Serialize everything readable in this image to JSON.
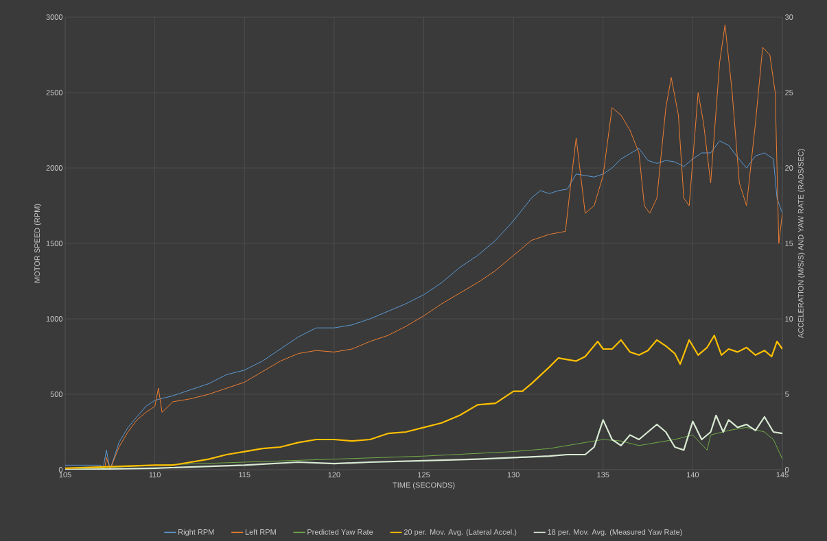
{
  "chart_data": {
    "type": "line",
    "xlabel": "TIME (SECONDS)",
    "ylabel": "MOTOR SPEED (RPM)",
    "y2label": "ACCELERATION (M/S/S) AND YAW RATE (RADS/SEC)",
    "xlim": [
      105,
      145
    ],
    "xticks": [
      105,
      110,
      115,
      120,
      125,
      130,
      135,
      140,
      145
    ],
    "ylim": [
      0,
      3000
    ],
    "yticks": [
      0,
      500,
      1000,
      1500,
      2000,
      2500,
      3000
    ],
    "y2lim": [
      0,
      30
    ],
    "y2ticks": [
      0,
      5,
      10,
      15,
      20,
      25,
      30
    ],
    "grid": true,
    "legend": "bottom",
    "series": [
      {
        "name": "Right RPM",
        "color": "#5b9bd5",
        "x": [
          105,
          107,
          107.1,
          107.3,
          107.5,
          108,
          108.5,
          109,
          109.5,
          110,
          111,
          112,
          113,
          114,
          115,
          116,
          117,
          118,
          119,
          120,
          121,
          122,
          123,
          124,
          125,
          126,
          127,
          128,
          129,
          130,
          131,
          131.5,
          132,
          132.5,
          133,
          133.5,
          134,
          134.5,
          135,
          135.5,
          136,
          137,
          137.5,
          138,
          138.5,
          139,
          139.5,
          140,
          140.5,
          141,
          141.5,
          142,
          142.5,
          143,
          143.5,
          144,
          144.5,
          144.7,
          145
        ],
        "values": [
          30,
          30,
          0,
          130,
          0,
          180,
          280,
          350,
          420,
          460,
          490,
          530,
          570,
          630,
          660,
          720,
          800,
          880,
          940,
          940,
          960,
          1000,
          1050,
          1100,
          1160,
          1240,
          1340,
          1420,
          1520,
          1650,
          1800,
          1850,
          1830,
          1850,
          1860,
          1960,
          1950,
          1940,
          1960,
          2000,
          2060,
          2130,
          2050,
          2030,
          2050,
          2040,
          2010,
          2060,
          2100,
          2100,
          2180,
          2150,
          2070,
          2000,
          2080,
          2100,
          2060,
          1800,
          1700
        ]
      },
      {
        "name": "Left RPM",
        "color": "#ed7d31",
        "x": [
          105,
          107,
          107.2,
          107.3,
          107.5,
          108,
          108.5,
          109,
          109.5,
          110,
          110.2,
          110.4,
          111,
          112,
          113,
          114,
          115,
          116,
          117,
          118,
          119,
          120,
          121,
          122,
          123,
          124,
          125,
          126,
          127,
          128,
          129,
          130,
          131,
          132,
          132.9,
          133.2,
          133.5,
          133.8,
          134,
          134.5,
          135,
          135.5,
          136,
          136.5,
          137,
          137.3,
          137.6,
          138,
          138.5,
          138.8,
          139.2,
          139.5,
          139.8,
          140.3,
          140.6,
          141,
          141.5,
          141.8,
          142.2,
          142.6,
          143,
          143.5,
          143.9,
          144.3,
          144.6,
          144.8,
          145
        ],
        "values": [
          10,
          10,
          0,
          80,
          0,
          150,
          250,
          330,
          380,
          420,
          540,
          380,
          450,
          470,
          500,
          540,
          580,
          650,
          720,
          770,
          790,
          780,
          800,
          850,
          890,
          950,
          1020,
          1100,
          1170,
          1240,
          1320,
          1420,
          1520,
          1560,
          1580,
          1900,
          2200,
          1900,
          1700,
          1750,
          1950,
          2400,
          2350,
          2250,
          2100,
          1750,
          1700,
          1800,
          2400,
          2600,
          2350,
          1800,
          1750,
          2500,
          2300,
          1900,
          2700,
          2950,
          2500,
          1900,
          1750,
          2300,
          2800,
          2750,
          2500,
          1500,
          1700
        ]
      },
      {
        "name": "Predicted Yaw Rate",
        "color": "#70ad47",
        "axis": "y2",
        "x": [
          105,
          110,
          115,
          120,
          125,
          130,
          132,
          133,
          134,
          135,
          136,
          137,
          138,
          139,
          140,
          140.8,
          141,
          142,
          143,
          144,
          144.5,
          145
        ],
        "values": [
          0,
          0.3,
          0.5,
          0.7,
          0.9,
          1.2,
          1.4,
          1.6,
          1.8,
          2.0,
          1.9,
          1.6,
          1.8,
          2.0,
          2.3,
          1.3,
          2.3,
          2.6,
          2.8,
          2.5,
          2.0,
          0.7
        ]
      },
      {
        "name": "20 per. Mov. Avg. (Lateral Accel.)",
        "color": "#ffc000",
        "axis": "y2",
        "x": [
          105,
          110,
          111,
          112,
          113,
          114,
          115,
          116,
          117,
          118,
          119,
          120,
          121,
          122,
          123,
          124,
          125,
          126,
          127,
          128,
          129,
          130,
          130.5,
          131,
          132,
          132.5,
          133,
          133.5,
          134,
          134.7,
          135,
          135.5,
          136,
          136.5,
          137,
          137.5,
          138,
          138.5,
          139,
          139.3,
          139.8,
          140.3,
          140.8,
          141.2,
          141.6,
          142,
          142.5,
          143,
          143.5,
          144,
          144.4,
          144.7,
          145
        ],
        "values": [
          0.1,
          0.3,
          0.3,
          0.5,
          0.7,
          1.0,
          1.2,
          1.4,
          1.5,
          1.8,
          2.0,
          2.0,
          1.9,
          2.0,
          2.4,
          2.5,
          2.8,
          3.1,
          3.6,
          4.3,
          4.4,
          5.2,
          5.2,
          5.7,
          6.8,
          7.4,
          7.3,
          7.2,
          7.5,
          8.5,
          8.0,
          8.0,
          8.6,
          7.8,
          7.6,
          7.9,
          8.6,
          8.2,
          7.7,
          7.0,
          8.6,
          7.6,
          8.1,
          8.9,
          7.6,
          8.0,
          7.8,
          8.1,
          7.6,
          7.9,
          7.5,
          8.5,
          8.0
        ]
      },
      {
        "name": "18 per. Mov. Avg. (Measured Yaw Rate)",
        "color": "#d9ead3",
        "axis": "y2",
        "x": [
          105,
          110,
          115,
          118,
          120,
          122,
          125,
          128,
          130,
          132,
          133,
          134,
          134.5,
          135,
          135.5,
          136,
          136.5,
          137,
          138,
          138.5,
          139,
          139.5,
          140,
          140.5,
          141,
          141.3,
          141.7,
          142,
          142.5,
          143,
          143.5,
          144,
          144.5,
          145
        ],
        "values": [
          0,
          0.1,
          0.3,
          0.5,
          0.4,
          0.5,
          0.6,
          0.7,
          0.8,
          0.9,
          1.0,
          1.0,
          1.5,
          3.3,
          2.0,
          1.6,
          2.3,
          2.0,
          3.0,
          2.5,
          1.5,
          1.3,
          3.2,
          2.0,
          2.5,
          3.6,
          2.5,
          3.3,
          2.8,
          3.0,
          2.6,
          3.5,
          2.5,
          2.4
        ]
      }
    ]
  }
}
